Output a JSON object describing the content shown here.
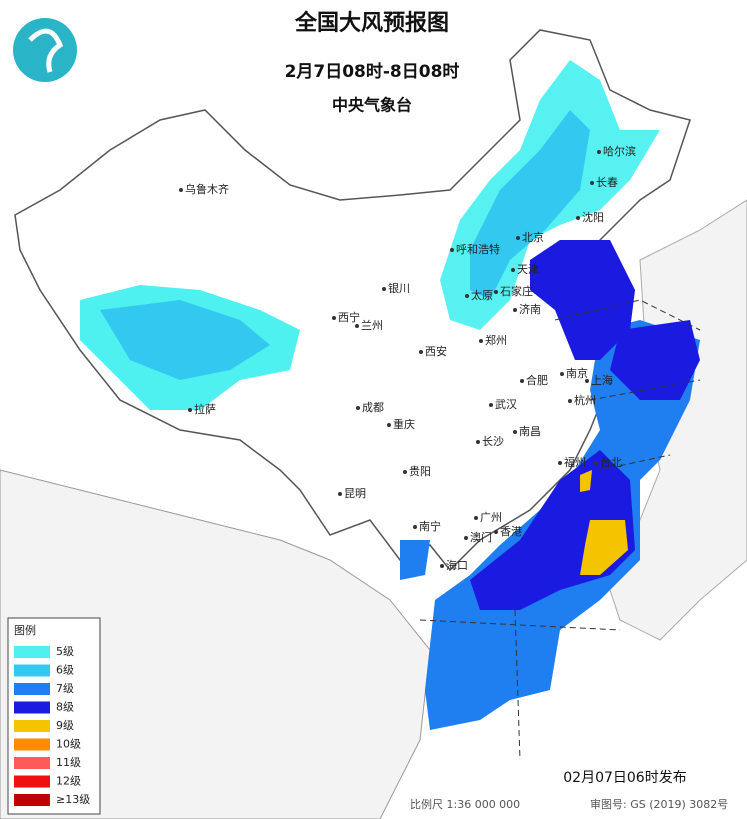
{
  "header": {
    "title": "全国大风预报图",
    "subtitle": "2月7日08时-8日08时",
    "issuer": "中央气象台"
  },
  "legend": {
    "title": "图例",
    "items": [
      {
        "label": "5级",
        "color": "#4ff0f0"
      },
      {
        "label": "6级",
        "color": "#33c8f0"
      },
      {
        "label": "7级",
        "color": "#1f7ff0"
      },
      {
        "label": "8级",
        "color": "#1a1ae0"
      },
      {
        "label": "9级",
        "color": "#f5c400"
      },
      {
        "label": "10级",
        "color": "#ff8c00"
      },
      {
        "label": "11级",
        "color": "#ff5a5a"
      },
      {
        "label": "12级",
        "color": "#f01010"
      },
      {
        "label": "≥13级",
        "color": "#c00000"
      }
    ]
  },
  "cities": [
    "乌鲁木齐",
    "哈尔滨",
    "长春",
    "沈阳",
    "北京",
    "天津",
    "呼和浩特",
    "石家庄",
    "太原",
    "济南",
    "银川",
    "西宁",
    "兰州",
    "郑州",
    "西安",
    "合肥",
    "南京",
    "上海",
    "杭州",
    "武汉",
    "成都",
    "重庆",
    "长沙",
    "南昌",
    "福州",
    "台北",
    "贵阳",
    "昆明",
    "南宁",
    "广州",
    "澳门",
    "香港",
    "海口",
    "拉萨"
  ],
  "footer": {
    "issued": "02月07日06时发布",
    "scale": "比例尺 1:36 000 000",
    "approval": "审图号: GS (2019) 3082号"
  }
}
